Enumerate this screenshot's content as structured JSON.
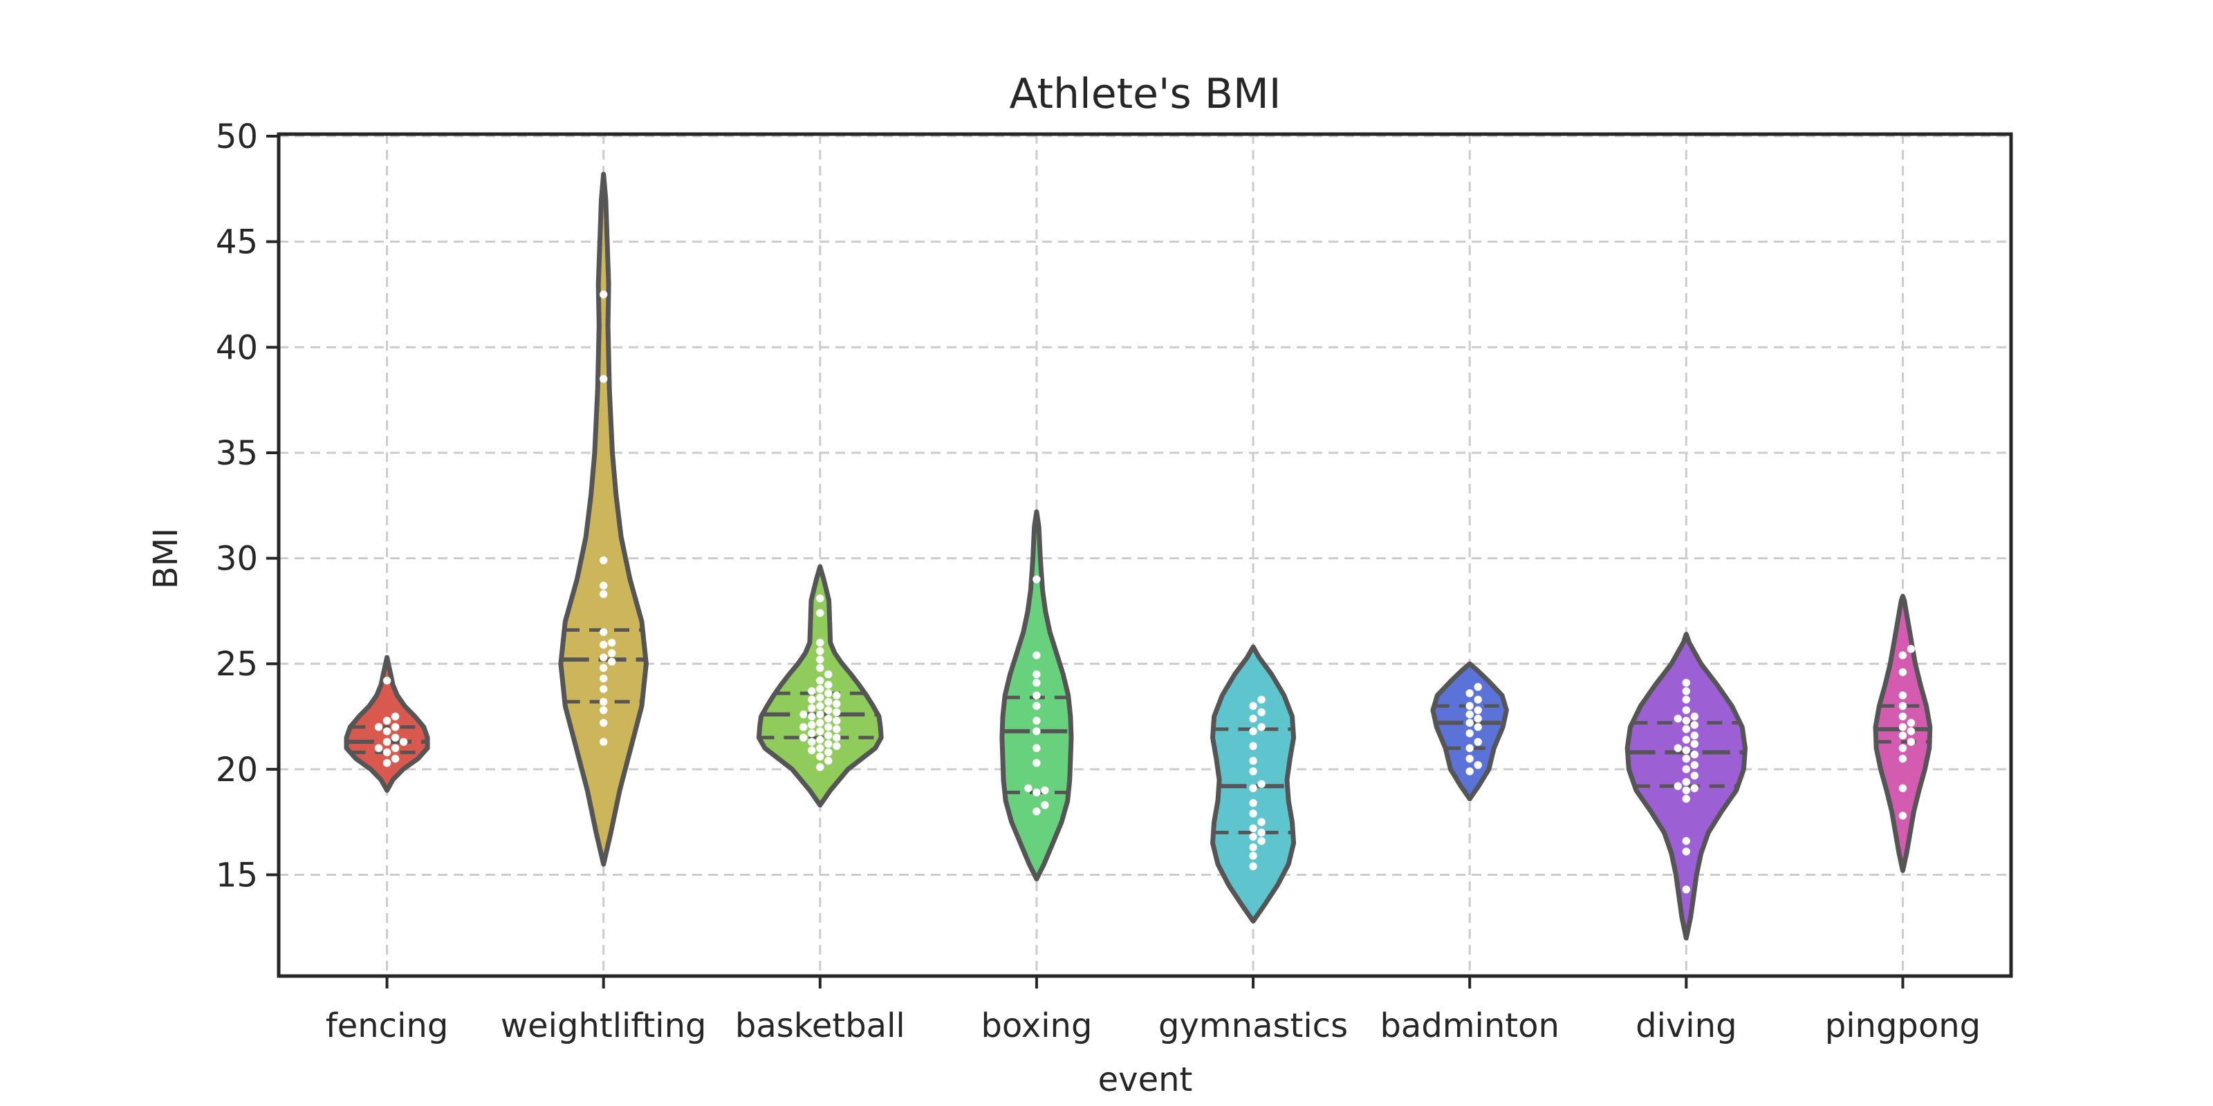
{
  "chart_data": {
    "type": "violin",
    "title": "Athlete's BMI",
    "xlabel": "event",
    "ylabel": "BMI",
    "ylim": [
      10.2,
      50.1
    ],
    "yticks": [
      15,
      20,
      25,
      30,
      35,
      40,
      45,
      50
    ],
    "grid": true,
    "inner": "quartile",
    "overlay": "swarm",
    "categories": [
      "fencing",
      "weightlifting",
      "basketball",
      "boxing",
      "gymnastics",
      "badminton",
      "diving",
      "pingpong"
    ],
    "series": [
      {
        "category": "fencing",
        "color": "#d9594f",
        "quartiles": [
          20.8,
          21.3,
          22.0
        ],
        "profile": [
          [
            19.0,
            0.0
          ],
          [
            19.5,
            0.08
          ],
          [
            20.0,
            0.22
          ],
          [
            20.5,
            0.42
          ],
          [
            21.0,
            0.55
          ],
          [
            21.5,
            0.55
          ],
          [
            22.0,
            0.5
          ],
          [
            22.5,
            0.38
          ],
          [
            23.0,
            0.24
          ],
          [
            23.5,
            0.14
          ],
          [
            24.0,
            0.08
          ],
          [
            24.5,
            0.05
          ],
          [
            25.3,
            0.0
          ]
        ],
        "values": [
          20.3,
          20.5,
          20.8,
          21.0,
          21.0,
          21.3,
          21.3,
          21.5,
          21.8,
          22.0,
          22.0,
          22.3,
          22.5,
          24.2
        ]
      },
      {
        "category": "weightlifting",
        "color": "#ccb55a",
        "quartiles": [
          23.2,
          25.2,
          26.6
        ],
        "profile": [
          [
            15.5,
            0.0
          ],
          [
            17.0,
            0.1
          ],
          [
            19.0,
            0.22
          ],
          [
            21.0,
            0.37
          ],
          [
            23.0,
            0.52
          ],
          [
            25.0,
            0.58
          ],
          [
            27.0,
            0.52
          ],
          [
            29.0,
            0.36
          ],
          [
            31.0,
            0.24
          ],
          [
            33.0,
            0.17
          ],
          [
            35.0,
            0.12
          ],
          [
            38.0,
            0.08
          ],
          [
            41.0,
            0.06
          ],
          [
            43.0,
            0.07
          ],
          [
            45.0,
            0.05
          ],
          [
            47.0,
            0.03
          ],
          [
            48.2,
            0.0
          ]
        ],
        "values": [
          21.3,
          22.2,
          22.8,
          23.2,
          23.8,
          24.3,
          24.8,
          25.1,
          25.3,
          25.5,
          25.9,
          26.0,
          26.5,
          28.3,
          28.7,
          29.9,
          38.5,
          42.5
        ]
      },
      {
        "category": "basketball",
        "color": "#8fcc5c",
        "quartiles": [
          21.5,
          22.6,
          23.6
        ],
        "profile": [
          [
            18.3,
            0.0
          ],
          [
            19.0,
            0.14
          ],
          [
            20.0,
            0.38
          ],
          [
            21.0,
            0.75
          ],
          [
            21.5,
            0.83
          ],
          [
            22.0,
            0.82
          ],
          [
            22.5,
            0.8
          ],
          [
            23.0,
            0.72
          ],
          [
            23.5,
            0.63
          ],
          [
            24.0,
            0.53
          ],
          [
            24.5,
            0.42
          ],
          [
            25.0,
            0.3
          ],
          [
            25.5,
            0.2
          ],
          [
            26.0,
            0.14
          ],
          [
            27.0,
            0.13
          ],
          [
            28.0,
            0.12
          ],
          [
            29.0,
            0.05
          ],
          [
            29.6,
            0.0
          ]
        ],
        "values": [
          20.1,
          20.4,
          20.6,
          20.8,
          20.9,
          21.0,
          21.1,
          21.2,
          21.3,
          21.4,
          21.5,
          21.5,
          21.6,
          21.7,
          21.8,
          21.9,
          22.0,
          22.0,
          22.1,
          22.2,
          22.3,
          22.4,
          22.5,
          22.6,
          22.6,
          22.7,
          22.8,
          22.9,
          23.0,
          23.1,
          23.2,
          23.3,
          23.4,
          23.5,
          23.6,
          23.7,
          23.8,
          24.0,
          24.2,
          24.5,
          24.8,
          25.2,
          25.6,
          26.0,
          27.4,
          28.1
        ]
      },
      {
        "category": "boxing",
        "color": "#67d17e",
        "quartiles": [
          18.9,
          21.8,
          23.4
        ],
        "profile": [
          [
            14.8,
            0.0
          ],
          [
            15.5,
            0.1
          ],
          [
            16.5,
            0.22
          ],
          [
            17.5,
            0.34
          ],
          [
            18.5,
            0.42
          ],
          [
            19.5,
            0.45
          ],
          [
            20.5,
            0.46
          ],
          [
            21.5,
            0.47
          ],
          [
            22.5,
            0.46
          ],
          [
            23.5,
            0.43
          ],
          [
            24.5,
            0.36
          ],
          [
            25.5,
            0.27
          ],
          [
            26.5,
            0.18
          ],
          [
            27.5,
            0.12
          ],
          [
            28.5,
            0.08
          ],
          [
            30.0,
            0.05
          ],
          [
            31.5,
            0.03
          ],
          [
            32.2,
            0.0
          ]
        ],
        "values": [
          18.0,
          18.3,
          18.9,
          19.0,
          19.1,
          20.3,
          21.0,
          21.8,
          22.3,
          23.0,
          23.5,
          24.1,
          24.5,
          25.4,
          29.0
        ]
      },
      {
        "category": "gymnastics",
        "color": "#5ec5cf",
        "quartiles": [
          17.0,
          19.2,
          21.9
        ],
        "profile": [
          [
            12.8,
            0.0
          ],
          [
            13.5,
            0.14
          ],
          [
            14.5,
            0.33
          ],
          [
            15.5,
            0.48
          ],
          [
            16.5,
            0.55
          ],
          [
            17.5,
            0.53
          ],
          [
            18.5,
            0.48
          ],
          [
            19.5,
            0.46
          ],
          [
            20.5,
            0.5
          ],
          [
            21.5,
            0.55
          ],
          [
            22.5,
            0.53
          ],
          [
            23.5,
            0.42
          ],
          [
            24.5,
            0.25
          ],
          [
            25.3,
            0.08
          ],
          [
            25.8,
            0.0
          ]
        ],
        "values": [
          15.4,
          15.9,
          16.3,
          16.6,
          16.8,
          17.0,
          17.2,
          17.5,
          17.9,
          18.4,
          19.1,
          19.3,
          19.9,
          20.4,
          21.1,
          21.8,
          22.0,
          22.4,
          22.7,
          23.0,
          23.3
        ]
      },
      {
        "category": "badminton",
        "color": "#5b73d9",
        "quartiles": [
          21.0,
          22.2,
          23.0
        ],
        "profile": [
          [
            18.6,
            0.0
          ],
          [
            19.2,
            0.12
          ],
          [
            20.0,
            0.26
          ],
          [
            21.0,
            0.33
          ],
          [
            22.0,
            0.45
          ],
          [
            22.8,
            0.5
          ],
          [
            23.5,
            0.44
          ],
          [
            24.2,
            0.25
          ],
          [
            24.7,
            0.1
          ],
          [
            25.0,
            0.0
          ]
        ],
        "values": [
          19.9,
          20.2,
          20.5,
          21.0,
          21.3,
          21.7,
          22.0,
          22.2,
          22.4,
          22.6,
          22.8,
          23.0,
          23.3,
          23.6,
          23.9
        ]
      },
      {
        "category": "diving",
        "color": "#9d5fd4",
        "quartiles": [
          19.2,
          20.8,
          22.2
        ],
        "profile": [
          [
            12.0,
            0.0
          ],
          [
            13.0,
            0.06
          ],
          [
            14.0,
            0.1
          ],
          [
            15.0,
            0.14
          ],
          [
            16.0,
            0.2
          ],
          [
            17.0,
            0.3
          ],
          [
            18.0,
            0.48
          ],
          [
            19.0,
            0.68
          ],
          [
            20.0,
            0.78
          ],
          [
            21.0,
            0.8
          ],
          [
            22.0,
            0.76
          ],
          [
            23.0,
            0.62
          ],
          [
            24.0,
            0.42
          ],
          [
            25.0,
            0.2
          ],
          [
            26.0,
            0.04
          ],
          [
            26.4,
            0.0
          ]
        ],
        "values": [
          14.3,
          16.1,
          16.6,
          18.6,
          19.0,
          19.1,
          19.2,
          19.4,
          19.7,
          20.0,
          20.2,
          20.5,
          20.7,
          20.9,
          21.0,
          21.2,
          21.4,
          21.6,
          21.9,
          22.1,
          22.3,
          22.4,
          22.5,
          22.8,
          23.3,
          23.7,
          24.1
        ]
      },
      {
        "category": "pingpong",
        "color": "#d45cb0",
        "quartiles": [
          21.3,
          21.9,
          23.0
        ],
        "profile": [
          [
            15.2,
            0.0
          ],
          [
            16.0,
            0.05
          ],
          [
            17.0,
            0.1
          ],
          [
            18.0,
            0.15
          ],
          [
            19.0,
            0.22
          ],
          [
            20.0,
            0.3
          ],
          [
            21.0,
            0.36
          ],
          [
            22.0,
            0.37
          ],
          [
            23.0,
            0.32
          ],
          [
            24.0,
            0.24
          ],
          [
            25.0,
            0.17
          ],
          [
            26.0,
            0.12
          ],
          [
            27.0,
            0.07
          ],
          [
            28.0,
            0.02
          ],
          [
            28.2,
            0.0
          ]
        ],
        "values": [
          17.8,
          19.1,
          20.5,
          21.0,
          21.3,
          21.6,
          21.8,
          22.0,
          22.2,
          22.5,
          23.0,
          23.5,
          24.6,
          25.4,
          25.7
        ]
      }
    ]
  }
}
